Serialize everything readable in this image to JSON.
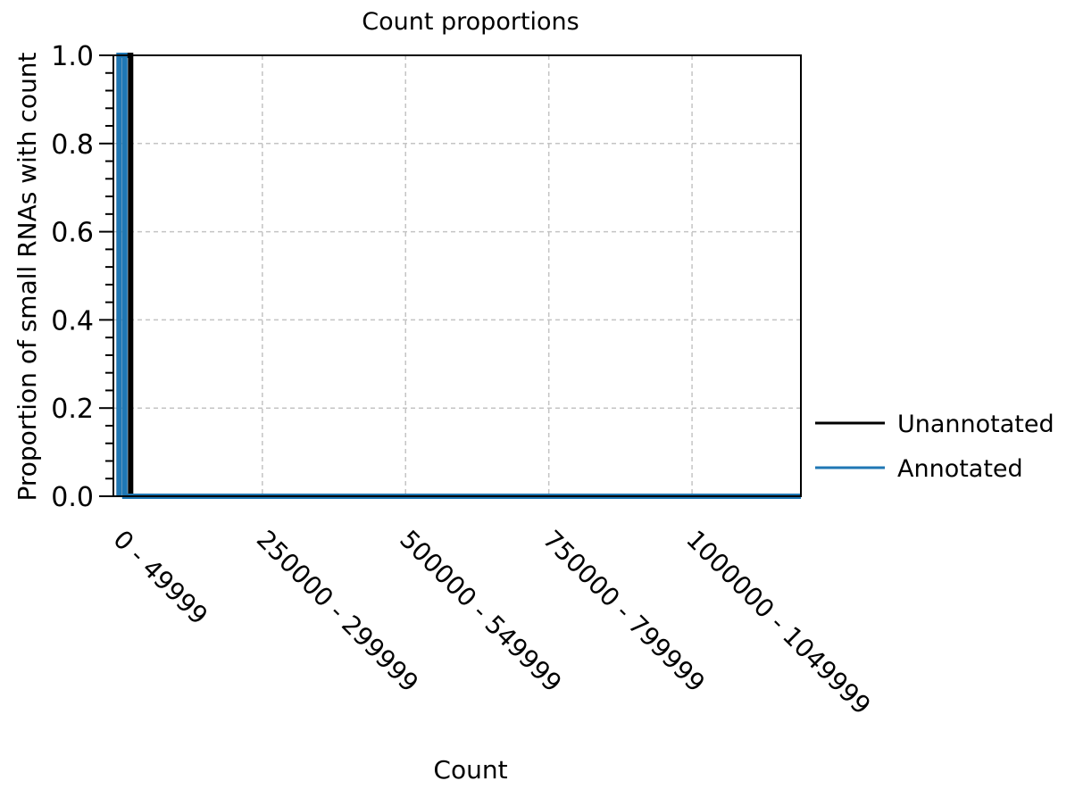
{
  "chart_data": {
    "type": "line",
    "title": "Count proportions",
    "xlabel": "Count",
    "ylabel": "Proportion of small RNAs with count",
    "x_tick_labels": [
      "0 - 49999",
      "250000 - 299999",
      "500000 - 549999",
      "750000 - 799999",
      "1000000 - 1049999"
    ],
    "x_tick_values": [
      0,
      250000,
      500000,
      750000,
      1000000
    ],
    "xlim": [
      -10000,
      1190000
    ],
    "ylim": [
      0,
      1.0
    ],
    "y_ticks": [
      0.0,
      0.2,
      0.4,
      0.6,
      0.8,
      1.0
    ],
    "y_tick_labels": [
      "0.0",
      "0.2",
      "0.4",
      "0.6",
      "0.8",
      "1.0"
    ],
    "grid": true,
    "legend": "right",
    "series": [
      {
        "name": "Unannotated",
        "color": "#000000",
        "points": [
          [
            0,
            0
          ],
          [
            0,
            1.0
          ],
          [
            20000,
            1.0
          ],
          [
            20000,
            0
          ],
          [
            1190000,
            0
          ]
        ]
      },
      {
        "name": "Annotated",
        "color": "#1f77b4",
        "points": [
          [
            0,
            0
          ],
          [
            0,
            1.0
          ],
          [
            10000,
            1.0
          ],
          [
            10000,
            0
          ],
          [
            1190000,
            0
          ]
        ]
      }
    ]
  }
}
